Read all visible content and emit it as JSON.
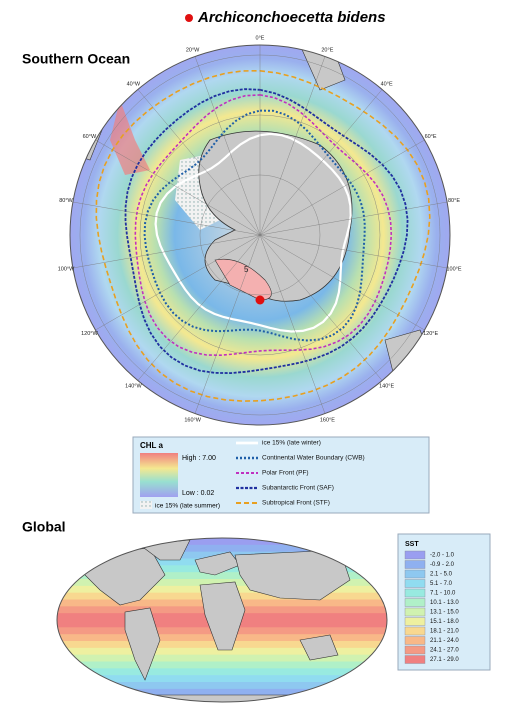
{
  "title": "Archiconchoecetta bidens",
  "southern_ocean": {
    "heading": "Southern Ocean",
    "longitudes": [
      "0°E",
      "20°E",
      "40°E",
      "60°E",
      "80°E",
      "100°E",
      "120°E",
      "140°E",
      "160°E",
      "160°W",
      "140°W",
      "120°W",
      "100°W",
      "80°W",
      "60°W",
      "40°W",
      "20°W"
    ],
    "site_label": "5",
    "legend": {
      "chl_title": "CHL a",
      "high": "High : 7.00",
      "low": "Low : 0.02",
      "ice_summer": "ice 15% (late summer)",
      "lines": [
        {
          "name": "ice 15% (late winter)",
          "color": "#ffffff"
        },
        {
          "name": "Continental Water Boundary (CWB)",
          "color": "#1f5fa8"
        },
        {
          "name": "Polar Front (PF)",
          "color": "#c030c0"
        },
        {
          "name": "Subantarctic Front (SAF)",
          "color": "#2030a0"
        },
        {
          "name": "Subtropical Front (STF)",
          "color": "#e8a020"
        }
      ]
    }
  },
  "global": {
    "heading": "Global",
    "sst_title": "SST",
    "sst_classes": [
      {
        "label": "-2.0 - 1.0",
        "color": "#9a9ef0"
      },
      {
        "label": "-0.9 - 2.0",
        "color": "#8fb0f0"
      },
      {
        "label": "2.1 - 5.0",
        "color": "#8ec8f0"
      },
      {
        "label": "5.1 - 7.0",
        "color": "#90dcf0"
      },
      {
        "label": "7.1 - 10.0",
        "color": "#98eae0"
      },
      {
        "label": "10.1 - 13.0",
        "color": "#b0f0c8"
      },
      {
        "label": "13.1 - 15.0",
        "color": "#d0f2b0"
      },
      {
        "label": "15.1 - 18.0",
        "color": "#eef0a0"
      },
      {
        "label": "18.1 - 21.0",
        "color": "#f8d890"
      },
      {
        "label": "21.1 - 24.0",
        "color": "#f8b888"
      },
      {
        "label": "24.1 - 27.0",
        "color": "#f49a84"
      },
      {
        "label": "27.1 - 29.0",
        "color": "#f08080"
      }
    ]
  }
}
